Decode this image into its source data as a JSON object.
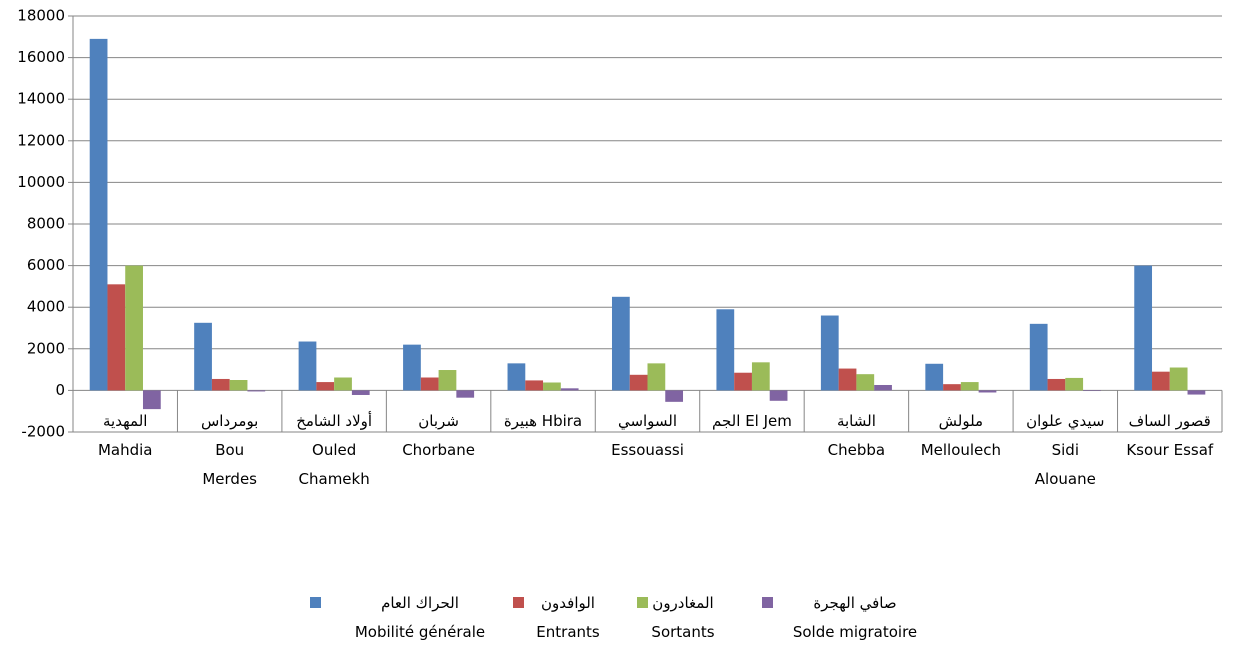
{
  "chart_data": {
    "type": "bar",
    "categories": [
      "المهدية\nMahdia",
      "بومرداس\nBou\nMerdes",
      "أولاد الشامخ\nOuled\nChamekh",
      "شربان\nChorbane",
      "هبيرة  Hbira",
      "السواسي\nEssouassi",
      "الجم  El Jem",
      "الشابة\nChebba",
      "ملولش\nMelloulech",
      "سيدي علوان\nSidi\nAlouane",
      "قصور الساف\nKsour Essaf"
    ],
    "series": [
      {
        "name": "الحراك العام\nMobilité générale",
        "color": "#4f81bd",
        "values": [
          16900,
          3250,
          2350,
          2200,
          1300,
          4500,
          3900,
          3600,
          1280,
          3200,
          6000
        ]
      },
      {
        "name": "الوافدون\nEntrants",
        "color": "#c0504d",
        "values": [
          5100,
          550,
          400,
          620,
          480,
          750,
          850,
          1050,
          300,
          550,
          900
        ]
      },
      {
        "name": "المغادرون\nSortants",
        "color": "#9bbb59",
        "values": [
          6000,
          500,
          620,
          980,
          380,
          1300,
          1350,
          780,
          400,
          600,
          1100
        ]
      },
      {
        "name": "صافي الهجرة\nSolde migratoire",
        "color": "#8064a2",
        "values": [
          -900,
          -50,
          -220,
          -350,
          100,
          -550,
          -500,
          260,
          -100,
          -30,
          -200
        ]
      }
    ],
    "ylim": [
      -2000,
      18000
    ],
    "yticks": [
      -2000,
      0,
      2000,
      4000,
      6000,
      8000,
      10000,
      12000,
      14000,
      16000,
      18000
    ],
    "grid": true,
    "legend": "bottom"
  }
}
